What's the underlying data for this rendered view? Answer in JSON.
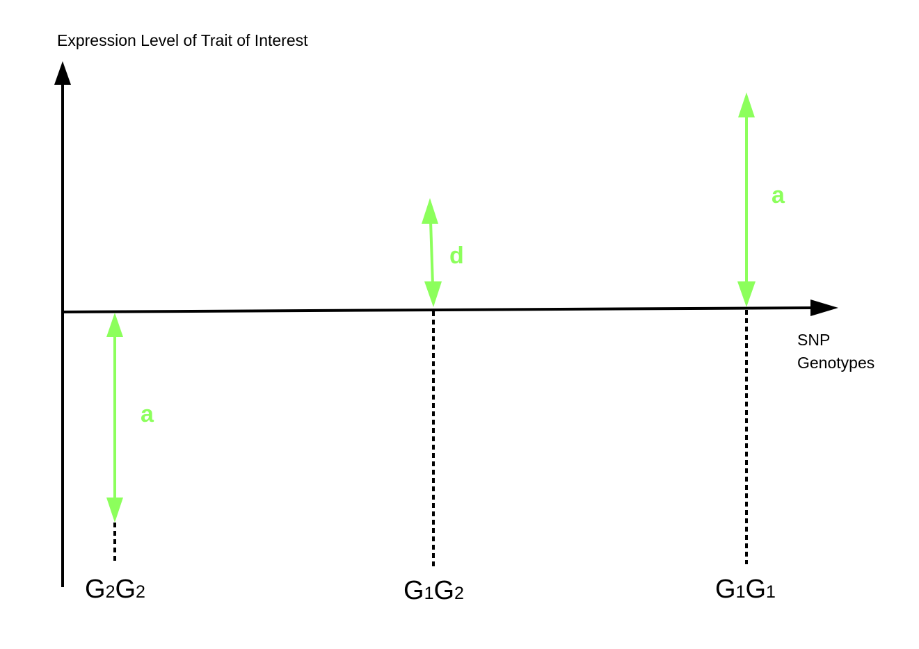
{
  "axes": {
    "y_label": "Expression Level of Trait of Interest",
    "x_label_line1": "SNP",
    "x_label_line2": "Genotypes"
  },
  "effects": {
    "additive_label": "a",
    "dominance_label": "d"
  },
  "genotypes": [
    {
      "allele1": "G",
      "index1": "2",
      "allele2": "G",
      "index2": "2"
    },
    {
      "allele1": "G",
      "index1": "1",
      "allele2": "G",
      "index2": "2"
    },
    {
      "allele1": "G",
      "index1": "1",
      "allele2": "G",
      "index2": "1"
    }
  ],
  "colors": {
    "axis": "#000000",
    "effect_arrow": "#8cff5c",
    "effect_label": "#8cff5c"
  }
}
